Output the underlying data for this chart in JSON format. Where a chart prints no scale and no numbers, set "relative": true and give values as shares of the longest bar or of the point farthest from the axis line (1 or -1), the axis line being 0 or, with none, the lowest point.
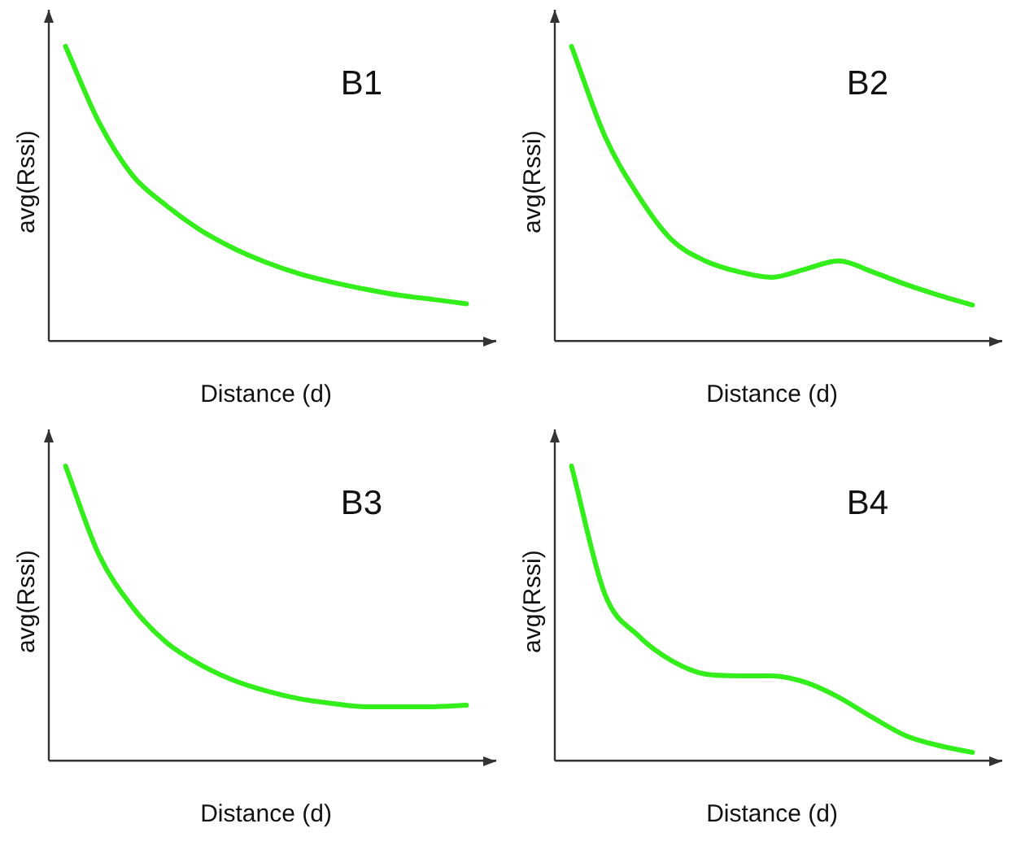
{
  "chart_data": [
    {
      "type": "line",
      "title": "B1",
      "xlabel": "Distance (d)",
      "ylabel": "avg(Rssi)",
      "relative": true,
      "categories": [
        null,
        null,
        null,
        null,
        null,
        null,
        null,
        null,
        null,
        null,
        null,
        null,
        null
      ],
      "grid": false,
      "legend": false,
      "marker": "none",
      "line_style": "solid",
      "series": [
        {
          "color": "#33ee1a",
          "values": [
            1,
            0.743,
            0.563,
            0.461,
            0.379,
            0.316,
            0.267,
            0.228,
            0.199,
            0.175,
            0.155,
            0.141,
            0.126
          ]
        }
      ]
    },
    {
      "type": "line",
      "title": "B2",
      "xlabel": "Distance (d)",
      "ylabel": "avg(Rssi)",
      "relative": true,
      "categories": [
        null,
        null,
        null,
        null,
        null,
        null,
        null,
        null,
        null,
        null,
        null,
        null,
        null
      ],
      "grid": false,
      "legend": false,
      "marker": "none",
      "line_style": "solid",
      "series": [
        {
          "color": "#33ee1a",
          "values": [
            1,
            0.695,
            0.493,
            0.343,
            0.272,
            0.235,
            0.216,
            0.244,
            0.272,
            0.235,
            0.192,
            0.155,
            0.122
          ]
        }
      ]
    },
    {
      "type": "line",
      "title": "B3",
      "xlabel": "Distance (d)",
      "ylabel": "avg(Rssi)",
      "relative": true,
      "categories": [
        null,
        null,
        null,
        null,
        null,
        null,
        null,
        null,
        null,
        null,
        null,
        null,
        null
      ],
      "grid": false,
      "legend": false,
      "marker": "none",
      "line_style": "solid",
      "series": [
        {
          "color": "#33ee1a",
          "values": [
            1,
            0.699,
            0.522,
            0.403,
            0.328,
            0.274,
            0.237,
            0.21,
            0.194,
            0.183,
            0.183,
            0.183,
            0.188
          ]
        }
      ]
    },
    {
      "type": "line",
      "title": "B4",
      "xlabel": "Distance (d)",
      "ylabel": "avg(Rssi)",
      "relative": true,
      "categories": [
        null,
        null,
        null,
        null,
        null,
        null,
        null,
        null,
        null,
        null,
        null,
        null,
        null
      ],
      "grid": false,
      "legend": false,
      "marker": "none",
      "line_style": "solid",
      "series": [
        {
          "color": "#33ee1a",
          "values": [
            1,
            0.565,
            0.424,
            0.339,
            0.294,
            0.288,
            0.288,
            0.266,
            0.215,
            0.147,
            0.085,
            0.051,
            0.028
          ]
        }
      ]
    }
  ]
}
